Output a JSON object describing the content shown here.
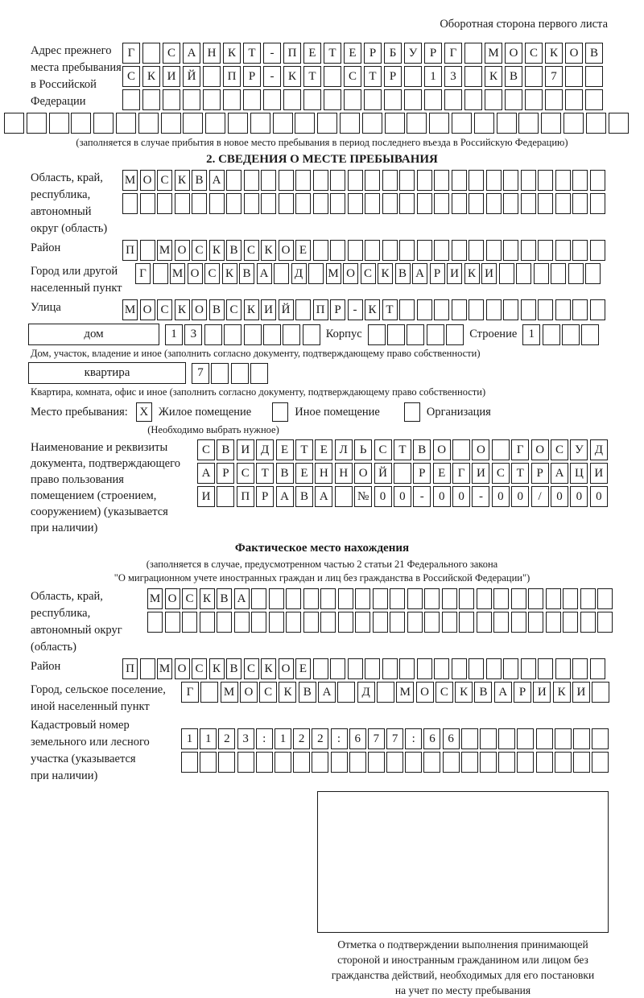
{
  "page": {
    "top_note": "Оборотная сторона первого листа"
  },
  "prev_address": {
    "label": "Адрес прежнего\nместа пребывания\nв Российской\nФедерации",
    "row1": "Г САНКТ-ПЕТЕРБУРГ МОСКОВ",
    "row2": "СКИЙ ПР-КТ СТР 13 КВ 7",
    "row3": "",
    "row4": "",
    "note": "(заполняется в случае прибытия в новое место пребывания в период последнего въезда в Российскую Федерацию)"
  },
  "section2": {
    "title": "2. СВЕДЕНИЯ О МЕСТЕ ПРЕБЫВАНИЯ",
    "region": {
      "label": "Область, край,\nреспублика,\nавтономный\nокруг (область)",
      "row1": "МОСКВА",
      "row2": ""
    },
    "district": {
      "label": "Район",
      "value": "П МОСКВСКОЕ"
    },
    "city": {
      "label": "Город или другой\nнаселенный пункт",
      "value": "Г МОСКВА Д МОСКВАРИКИ"
    },
    "street": {
      "label": "Улица",
      "value": "МОСКОВСКИЙ ПР-КТ"
    },
    "house": {
      "label": "дом",
      "value": "13",
      "korpus_label": "Корпус",
      "korpus_value": "",
      "stroenie_label": "Строение",
      "stroenie_value": "1",
      "note": "Дом, участок, владение и иное (заполнить согласно документу, подтверждающему право собственности)"
    },
    "apartment": {
      "label": "квартира",
      "value": "7",
      "note": "Квартира, комната, офис и иное (заполнить согласно документу, подтверждающему право собственности)"
    },
    "stay_type": {
      "label": "Место пребывания:",
      "options": [
        {
          "label": "Жилое помещение",
          "checked": "X"
        },
        {
          "label": "Иное помещение",
          "checked": ""
        },
        {
          "label": "Организация",
          "checked": ""
        }
      ],
      "note": "(Необходимо выбрать нужное)"
    },
    "document": {
      "label": "Наименование и реквизиты\nдокумента, подтверждающего\nправо пользования\nпомещением (строением,\nсооружением) (указывается\nпри наличии)",
      "row1": "СВИДЕТЕЛЬСТВО О ГОСУД",
      "row2": "АРСТВЕННОЙ РЕГИСТРАЦИ",
      "row3": "И ПРАВА №00-00-00/000"
    }
  },
  "actual_location": {
    "title": "Фактическое место нахождения",
    "note": "(заполняется в случае, предусмотренном частью 2 статьи 21 Федерального закона\n\"О миграционном учете иностранных граждан и лиц без гражданства в Российской Федерации\")",
    "region": {
      "label": "Область, край,\nреспублика,\nавтономный округ\n(область)",
      "row1": "МОСКВА",
      "row2": ""
    },
    "district": {
      "label": "Район",
      "value": "П МОСКВСКОЕ"
    },
    "city": {
      "label": "Город, сельское поселение,\nиной населенный пункт",
      "value": "Г МОСКВА Д МОСКВАРИКИ"
    },
    "cadastre": {
      "label": "Кадастровый номер\nземельного или лесного\nучастка (указывается\nпри наличии)",
      "row1": "1123:122:677:66",
      "row2": ""
    }
  },
  "stamp": {
    "caption": "Отметка о подтверждении выполнения принимающей\nстороной и иностранным гражданином или лицом без\nгражданства действий, необходимых для его постановки\nна учет по месту пребывания"
  }
}
